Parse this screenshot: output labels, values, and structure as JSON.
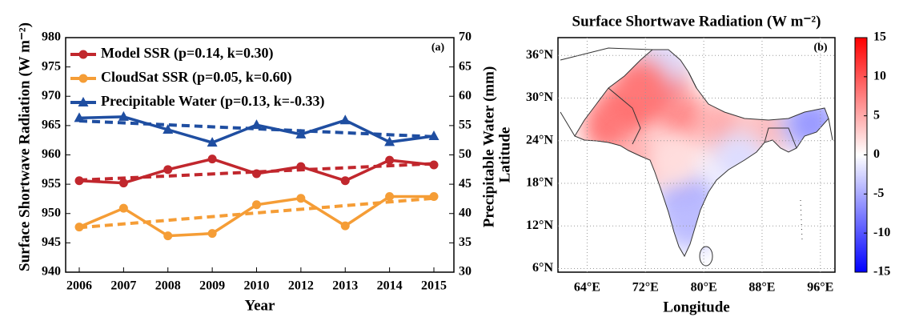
{
  "chart_data": [
    {
      "type": "line",
      "annotation": "(a)",
      "xlabel": "Year",
      "ylabel": "Surface Shortwave Radiation (W m⁻²)",
      "y2label": "Precipitable Water (mm)",
      "categories": [
        "2006",
        "2007",
        "2008",
        "2009",
        "2010",
        "2012",
        "2013",
        "2014",
        "2015"
      ],
      "ylim": [
        940,
        980
      ],
      "yticks": [
        940,
        945,
        950,
        955,
        960,
        965,
        970,
        975,
        980
      ],
      "y2lim": [
        30,
        70
      ],
      "y2ticks": [
        30,
        35,
        40,
        45,
        50,
        55,
        60,
        65,
        70
      ],
      "series": [
        {
          "name": "Model SSR (p=0.14, k=0.30)",
          "color": "#c1272d",
          "marker": "circle",
          "axis": "y",
          "values": [
            955.6,
            955.2,
            957.5,
            959.3,
            956.8,
            958.0,
            955.6,
            959.1,
            958.3
          ],
          "trend": [
            955.7,
            958.5
          ]
        },
        {
          "name": "CloudSat SSR (p=0.05, k=0.60)",
          "color": "#f59d36",
          "marker": "circle",
          "axis": "y",
          "values": [
            947.7,
            950.9,
            946.2,
            946.6,
            951.5,
            952.6,
            947.9,
            952.9,
            952.9
          ],
          "trend": [
            947.6,
            952.6
          ]
        },
        {
          "name": "Precipitable Water (p=0.13, k=-0.33)",
          "color": "#1f4ea1",
          "marker": "triangle",
          "axis": "y2",
          "values": [
            56.3,
            56.5,
            54.3,
            52.1,
            55.1,
            53.5,
            55.9,
            52.2,
            53.2
          ],
          "trend": [
            55.8,
            53.1
          ]
        }
      ]
    },
    {
      "type": "heatmap",
      "title": "Surface Shortwave Radiation (W m⁻²)",
      "annotation": "(b)",
      "xlabel": "Longitude",
      "ylabel": "Latitude",
      "xlim": [
        60,
        98
      ],
      "ylim": [
        5.5,
        38.5
      ],
      "xticks": [
        {
          "value": 64,
          "label": "64°E"
        },
        {
          "value": 72,
          "label": "72°E"
        },
        {
          "value": 80,
          "label": "80°E"
        },
        {
          "value": 88,
          "label": "88°E"
        },
        {
          "value": 96,
          "label": "96°E"
        }
      ],
      "yticks": [
        {
          "value": 6,
          "label": "6°N"
        },
        {
          "value": 12,
          "label": "12°N"
        },
        {
          "value": 18,
          "label": "18°N"
        },
        {
          "value": 24,
          "label": "24°N"
        },
        {
          "value": 30,
          "label": "30°N"
        },
        {
          "value": 36,
          "label": "36°N"
        }
      ],
      "grid": true,
      "clim": [
        -15,
        15
      ],
      "cticks": [
        -15,
        -10,
        -5,
        0,
        5,
        10,
        15
      ],
      "field": [
        {
          "lon": 69.3,
          "lat": 28.1,
          "value": 9
        },
        {
          "lon": 73.7,
          "lat": 31.5,
          "value": 10
        },
        {
          "lon": 67.1,
          "lat": 25.9,
          "value": 8
        },
        {
          "lon": 77.0,
          "lat": 27.0,
          "value": 7
        },
        {
          "lon": 82.5,
          "lat": 25.9,
          "value": 5
        },
        {
          "lon": 88.1,
          "lat": 25.3,
          "value": 4
        },
        {
          "lon": 94.7,
          "lat": 26.4,
          "value": -6
        },
        {
          "lon": 77.6,
          "lat": 15.8,
          "value": -5
        },
        {
          "lon": 78.1,
          "lat": 12.4,
          "value": -4
        },
        {
          "lon": 71.5,
          "lat": 21.4,
          "value": 5
        },
        {
          "lon": 74.3,
          "lat": 34.9,
          "value": -2
        },
        {
          "lon": 75.9,
          "lat": 21.4,
          "value": 2
        },
        {
          "lon": 84.8,
          "lat": 21.4,
          "value": -2
        },
        {
          "lon": 71.5,
          "lat": 31.5,
          "value": 8
        }
      ]
    }
  ]
}
